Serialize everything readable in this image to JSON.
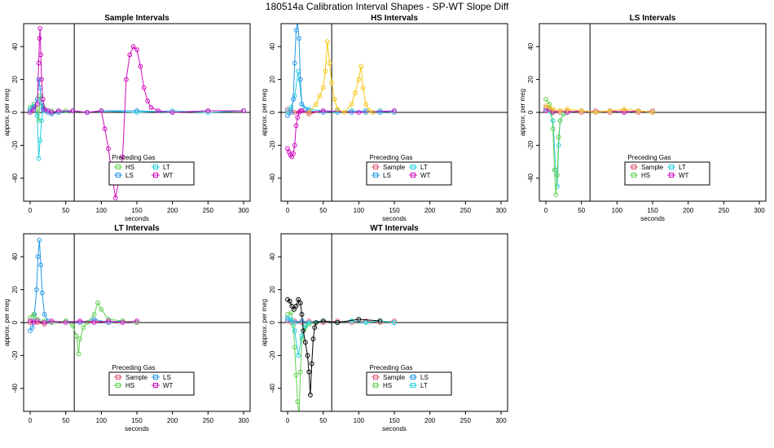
{
  "figure": {
    "title": "180514a   Calibration Interval Shapes - SP-WT Slope Diff"
  },
  "chart_data": [
    {
      "type": "scatter",
      "title": "Sample Intervals",
      "xlabel": "seconds",
      "ylabel": "approx. per meg",
      "xlim": [
        0,
        300
      ],
      "ylim": [
        -50,
        50
      ],
      "xticks": [
        0,
        50,
        100,
        150,
        200,
        250,
        300
      ],
      "yticks": [
        -40,
        -20,
        0,
        20,
        40
      ],
      "vline": 62,
      "hline": 0,
      "legend_title": "Preceding Gas",
      "legend_position": "bottom-center",
      "series": [
        {
          "name": "HS",
          "color": "#61d04f",
          "x": [
            0,
            5,
            10,
            12,
            14,
            16,
            18,
            20,
            25,
            30,
            40,
            50,
            60,
            80,
            100,
            150,
            200,
            250,
            300
          ],
          "y": [
            3,
            5,
            2,
            -5,
            10,
            6,
            4,
            2,
            1,
            1,
            0,
            1,
            1,
            0,
            1,
            1,
            0,
            1,
            1
          ]
        },
        {
          "name": "LT",
          "color": "#22d0e0",
          "x": [
            0,
            5,
            10,
            12,
            14,
            16,
            18,
            20,
            25,
            30,
            40,
            60,
            80,
            100,
            150,
            200,
            250,
            300
          ],
          "y": [
            2,
            4,
            -2,
            -28,
            -17,
            -5,
            3,
            2,
            1,
            0,
            1,
            1,
            0,
            1,
            0,
            1,
            0,
            1
          ]
        },
        {
          "name": "LS",
          "color": "#2297e6",
          "x": [
            0,
            5,
            10,
            12,
            14,
            16,
            18,
            20,
            25,
            30,
            40,
            60,
            80,
            100,
            150,
            200,
            250,
            300
          ],
          "y": [
            1,
            3,
            8,
            20,
            15,
            6,
            2,
            1,
            0,
            -1,
            0,
            1,
            0,
            1,
            1,
            0,
            1,
            1
          ]
        },
        {
          "name": "WT",
          "color": "#cd0bbc",
          "x": [
            0,
            5,
            10,
            12,
            13,
            14,
            15,
            16,
            18,
            20,
            25,
            30,
            40,
            60,
            80,
            100,
            105,
            110,
            115,
            120,
            125,
            130,
            135,
            140,
            145,
            150,
            155,
            160,
            165,
            170,
            180,
            200,
            250,
            300
          ],
          "y": [
            0,
            2,
            5,
            30,
            45,
            51,
            35,
            20,
            8,
            2,
            1,
            0,
            1,
            1,
            0,
            1,
            -10,
            -22,
            -38,
            -52,
            -40,
            -27,
            20,
            35,
            40,
            38,
            28,
            15,
            7,
            3,
            1,
            0,
            1,
            1
          ]
        }
      ]
    },
    {
      "type": "scatter",
      "title": "HS Intervals",
      "xlabel": "seconds",
      "ylabel": "approx. per meg",
      "xlim": [
        0,
        300
      ],
      "ylim": [
        -50,
        50
      ],
      "xticks": [
        0,
        50,
        100,
        150,
        200,
        250,
        300
      ],
      "yticks": [
        -40,
        -20,
        0,
        20,
        40
      ],
      "vline": 62,
      "hline": 0,
      "legend_title": "Preceding Gas",
      "legend_position": "bottom-center",
      "series": [
        {
          "name": "Sample",
          "color": "#df536b",
          "x": [
            0,
            5,
            10,
            20,
            30,
            50,
            70,
            90,
            110,
            130,
            150
          ],
          "y": [
            2,
            1,
            0,
            1,
            -1,
            1,
            0,
            1,
            0,
            1,
            0
          ]
        },
        {
          "name": "LT",
          "color": "#22d0e0",
          "x": [
            0,
            5,
            10,
            15,
            20,
            30,
            50,
            70,
            90,
            110,
            130,
            150
          ],
          "y": [
            1,
            3,
            10,
            25,
            5,
            2,
            1,
            0,
            1,
            0,
            1,
            0
          ]
        },
        {
          "name": "LS",
          "color": "#2297e6",
          "x": [
            0,
            5,
            8,
            10,
            12,
            14,
            16,
            18,
            20,
            25,
            30,
            50,
            70,
            90,
            110,
            130,
            150
          ],
          "y": [
            -2,
            0,
            8,
            30,
            50,
            55,
            45,
            20,
            5,
            2,
            1,
            0,
            1,
            0,
            1,
            0,
            1
          ]
        },
        {
          "name": "WT",
          "color": "#cd0bbc",
          "x": [
            0,
            2,
            4,
            6,
            8,
            10,
            12,
            14,
            16,
            18,
            20,
            30,
            50,
            100,
            150
          ],
          "y": [
            -22,
            -24,
            -26,
            -27,
            -25,
            -20,
            -8,
            -3,
            0,
            1,
            1,
            0,
            1,
            0,
            1
          ]
        },
        {
          "name": "",
          "color": "#f5c710",
          "x": [
            30,
            40,
            45,
            50,
            53,
            56,
            59,
            62,
            66,
            70,
            80,
            90,
            95,
            100,
            103,
            106,
            110,
            115,
            120
          ],
          "y": [
            0,
            5,
            10,
            15,
            25,
            43,
            30,
            18,
            8,
            2,
            0,
            5,
            12,
            20,
            28,
            15,
            5,
            1,
            0
          ]
        }
      ]
    },
    {
      "type": "scatter",
      "title": "LS Intervals",
      "xlabel": "seconds",
      "ylabel": "approx. per meg",
      "xlim": [
        0,
        300
      ],
      "ylim": [
        -50,
        50
      ],
      "xticks": [
        0,
        50,
        100,
        150,
        200,
        250,
        300
      ],
      "yticks": [
        -40,
        -20,
        0,
        20,
        40
      ],
      "vline": 62,
      "hline": 0,
      "legend_title": "Preceding Gas",
      "legend_position": "bottom-center",
      "series": [
        {
          "name": "Sample",
          "color": "#df536b",
          "x": [
            0,
            5,
            10,
            20,
            30,
            50,
            70,
            90,
            110,
            130,
            150
          ],
          "y": [
            3,
            2,
            1,
            0,
            1,
            0,
            1,
            0,
            1,
            0,
            1
          ]
        },
        {
          "name": "LT",
          "color": "#22d0e0",
          "x": [
            0,
            5,
            10,
            14,
            16,
            18,
            20,
            25,
            30,
            50,
            70,
            90,
            110,
            130,
            150
          ],
          "y": [
            2,
            1,
            -5,
            -35,
            -45,
            -20,
            -5,
            -1,
            0,
            1,
            0,
            1,
            0,
            1,
            0
          ]
        },
        {
          "name": "HS",
          "color": "#61d04f",
          "x": [
            0,
            5,
            8,
            10,
            12,
            14,
            16,
            18,
            20,
            25,
            30,
            50,
            70,
            90,
            110,
            130,
            150
          ],
          "y": [
            8,
            5,
            0,
            -10,
            -35,
            -50,
            -38,
            -15,
            -5,
            -1,
            0,
            1,
            0,
            1,
            0,
            1,
            0
          ]
        },
        {
          "name": "WT",
          "color": "#cd0bbc",
          "x": [
            0,
            5,
            10,
            20,
            30,
            50,
            70,
            90,
            110,
            130,
            150
          ],
          "y": [
            1,
            2,
            0,
            1,
            0,
            1,
            0,
            1,
            0,
            1,
            0
          ]
        },
        {
          "name": "",
          "color": "#f5c710",
          "x": [
            0,
            5,
            10,
            20,
            30,
            50,
            70,
            90,
            110,
            130,
            150
          ],
          "y": [
            4,
            3,
            2,
            1,
            2,
            1,
            0,
            1,
            2,
            1,
            0
          ]
        }
      ]
    },
    {
      "type": "scatter",
      "title": "LT Intervals",
      "xlabel": "seconds",
      "ylabel": "approx. per meg",
      "xlim": [
        0,
        300
      ],
      "ylim": [
        -50,
        50
      ],
      "xticks": [
        0,
        50,
        100,
        150,
        200,
        250,
        300
      ],
      "yticks": [
        -40,
        -20,
        0,
        20,
        40
      ],
      "vline": 62,
      "hline": 0,
      "legend_title": "Preceding Gas",
      "legend_position": "bottom-center",
      "series": [
        {
          "name": "Sample",
          "color": "#df536b",
          "x": [
            0,
            5,
            10,
            20,
            30,
            50,
            70,
            90,
            110,
            130,
            150
          ],
          "y": [
            0,
            1,
            0,
            -1,
            0,
            1,
            0,
            1,
            0,
            1,
            0
          ]
        },
        {
          "name": "LS",
          "color": "#2297e6",
          "x": [
            0,
            3,
            6,
            9,
            11,
            13,
            15,
            17,
            20,
            25,
            30,
            50,
            70,
            90,
            110,
            130,
            150
          ],
          "y": [
            -5,
            -3,
            5,
            20,
            40,
            50,
            35,
            18,
            5,
            1,
            0,
            1,
            0,
            2,
            0,
            1,
            0
          ]
        },
        {
          "name": "HS",
          "color": "#61d04f",
          "x": [
            0,
            5,
            10,
            20,
            30,
            50,
            60,
            65,
            68,
            70,
            75,
            80,
            90,
            95,
            100,
            110,
            130,
            150
          ],
          "y": [
            3,
            5,
            2,
            1,
            0,
            1,
            -2,
            -8,
            -19,
            -10,
            -3,
            0,
            5,
            12,
            8,
            2,
            1,
            0
          ]
        },
        {
          "name": "WT",
          "color": "#cd0bbc",
          "x": [
            0,
            5,
            10,
            20,
            30,
            50,
            70,
            90,
            110,
            130,
            150
          ],
          "y": [
            1,
            0,
            1,
            0,
            1,
            0,
            1,
            0,
            1,
            0,
            1
          ]
        }
      ]
    },
    {
      "type": "scatter",
      "title": "WT Intervals",
      "xlabel": "seconds",
      "ylabel": "approx. per meg",
      "xlim": [
        0,
        300
      ],
      "ylim": [
        -50,
        50
      ],
      "xticks": [
        0,
        50,
        100,
        150,
        200,
        250,
        300
      ],
      "yticks": [
        -40,
        -20,
        0,
        20,
        40
      ],
      "vline": 62,
      "hline": 0,
      "legend_title": "Preceding Gas",
      "legend_position": "bottom-center",
      "series": [
        {
          "name": "Sample",
          "color": "#df536b",
          "x": [
            0,
            5,
            10,
            20,
            30,
            50,
            70,
            90,
            110,
            130,
            150
          ],
          "y": [
            1,
            0,
            1,
            0,
            1,
            0,
            1,
            0,
            1,
            0,
            1
          ]
        },
        {
          "name": "LS",
          "color": "#2297e6",
          "x": [
            0,
            5,
            10,
            20,
            30,
            50,
            70,
            90,
            110,
            130,
            150
          ],
          "y": [
            2,
            1,
            0,
            1,
            0,
            1,
            0,
            1,
            0,
            1,
            0
          ]
        },
        {
          "name": "HS",
          "color": "#61d04f",
          "x": [
            0,
            5,
            8,
            10,
            12,
            14,
            16,
            18,
            20,
            25,
            30,
            40,
            50,
            70,
            90,
            110,
            130,
            150
          ],
          "y": [
            5,
            6,
            -2,
            -15,
            -32,
            -48,
            -56,
            -30,
            -10,
            -3,
            -1,
            0,
            1,
            0,
            1,
            0,
            1,
            0
          ]
        },
        {
          "name": "LT",
          "color": "#22d0e0",
          "x": [
            0,
            5,
            10,
            15,
            20,
            25,
            30,
            50,
            70,
            90,
            110,
            130,
            150
          ],
          "y": [
            3,
            2,
            -5,
            -20,
            -8,
            -2,
            0,
            1,
            0,
            1,
            0,
            1,
            0
          ]
        },
        {
          "name": "",
          "color": "#000000",
          "x": [
            0,
            3,
            6,
            9,
            12,
            15,
            18,
            20,
            22,
            25,
            28,
            30,
            32,
            34,
            36,
            38,
            40,
            50,
            70,
            100,
            130
          ],
          "y": [
            14,
            13,
            10,
            8,
            10,
            14,
            12,
            5,
            -5,
            -12,
            -20,
            -30,
            -44,
            -25,
            -10,
            -3,
            0,
            1,
            0,
            2,
            1
          ]
        }
      ]
    }
  ]
}
